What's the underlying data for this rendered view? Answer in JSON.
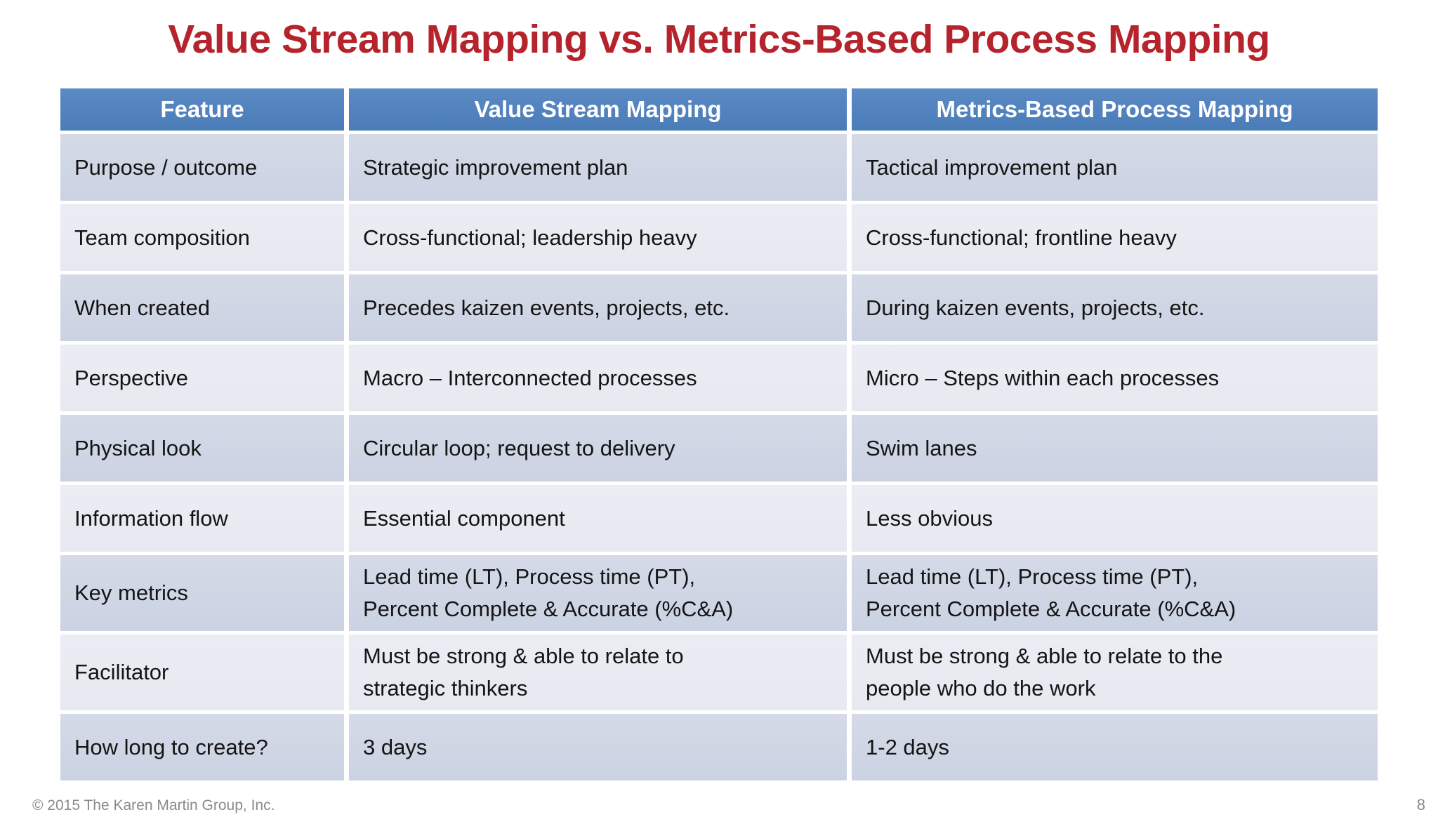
{
  "title": "Value Stream Mapping vs. Metrics-Based Process Mapping",
  "colors": {
    "title_text": "#B5242C",
    "header_bg": "#4F81BD",
    "header_text": "#FFFFFF",
    "row_dark": "#CED5E4",
    "row_light": "#E9EBF2",
    "body_text": "#141414",
    "footer_text": "#8A8A8A"
  },
  "table": {
    "columns": [
      "Feature",
      "Value Stream Mapping",
      "Metrics-Based Process Mapping"
    ],
    "rows": [
      {
        "feature": "Purpose / outcome",
        "vsm": "Strategic improvement plan",
        "mbpm": "Tactical improvement plan"
      },
      {
        "feature": "Team composition",
        "vsm": "Cross-functional; leadership heavy",
        "mbpm": "Cross-functional; frontline heavy"
      },
      {
        "feature": "When created",
        "vsm": "Precedes kaizen events, projects, etc.",
        "mbpm": "During kaizen events, projects, etc."
      },
      {
        "feature": "Perspective",
        "vsm": "Macro – Interconnected processes",
        "mbpm": "Micro – Steps within each processes"
      },
      {
        "feature": "Physical look",
        "vsm": "Circular loop; request to delivery",
        "mbpm": "Swim lanes"
      },
      {
        "feature": "Information flow",
        "vsm": "Essential component",
        "mbpm": "Less obvious"
      },
      {
        "feature": "Key metrics",
        "vsm": [
          "Lead time (LT), Process time (PT),",
          "Percent Complete & Accurate (%C&A)"
        ],
        "mbpm": [
          "Lead time (LT), Process time (PT),",
          "Percent Complete & Accurate (%C&A)"
        ]
      },
      {
        "feature": "Facilitator",
        "vsm": [
          "Must be strong & able to relate to",
          "strategic thinkers"
        ],
        "mbpm": [
          "Must be strong & able to relate to the",
          "people who do the work"
        ]
      },
      {
        "feature": "How long to create?",
        "vsm": "3 days",
        "mbpm": "1-2 days"
      }
    ]
  },
  "footer": {
    "copyright": "© 2015 The Karen Martin Group, Inc.",
    "page_number": "8"
  }
}
